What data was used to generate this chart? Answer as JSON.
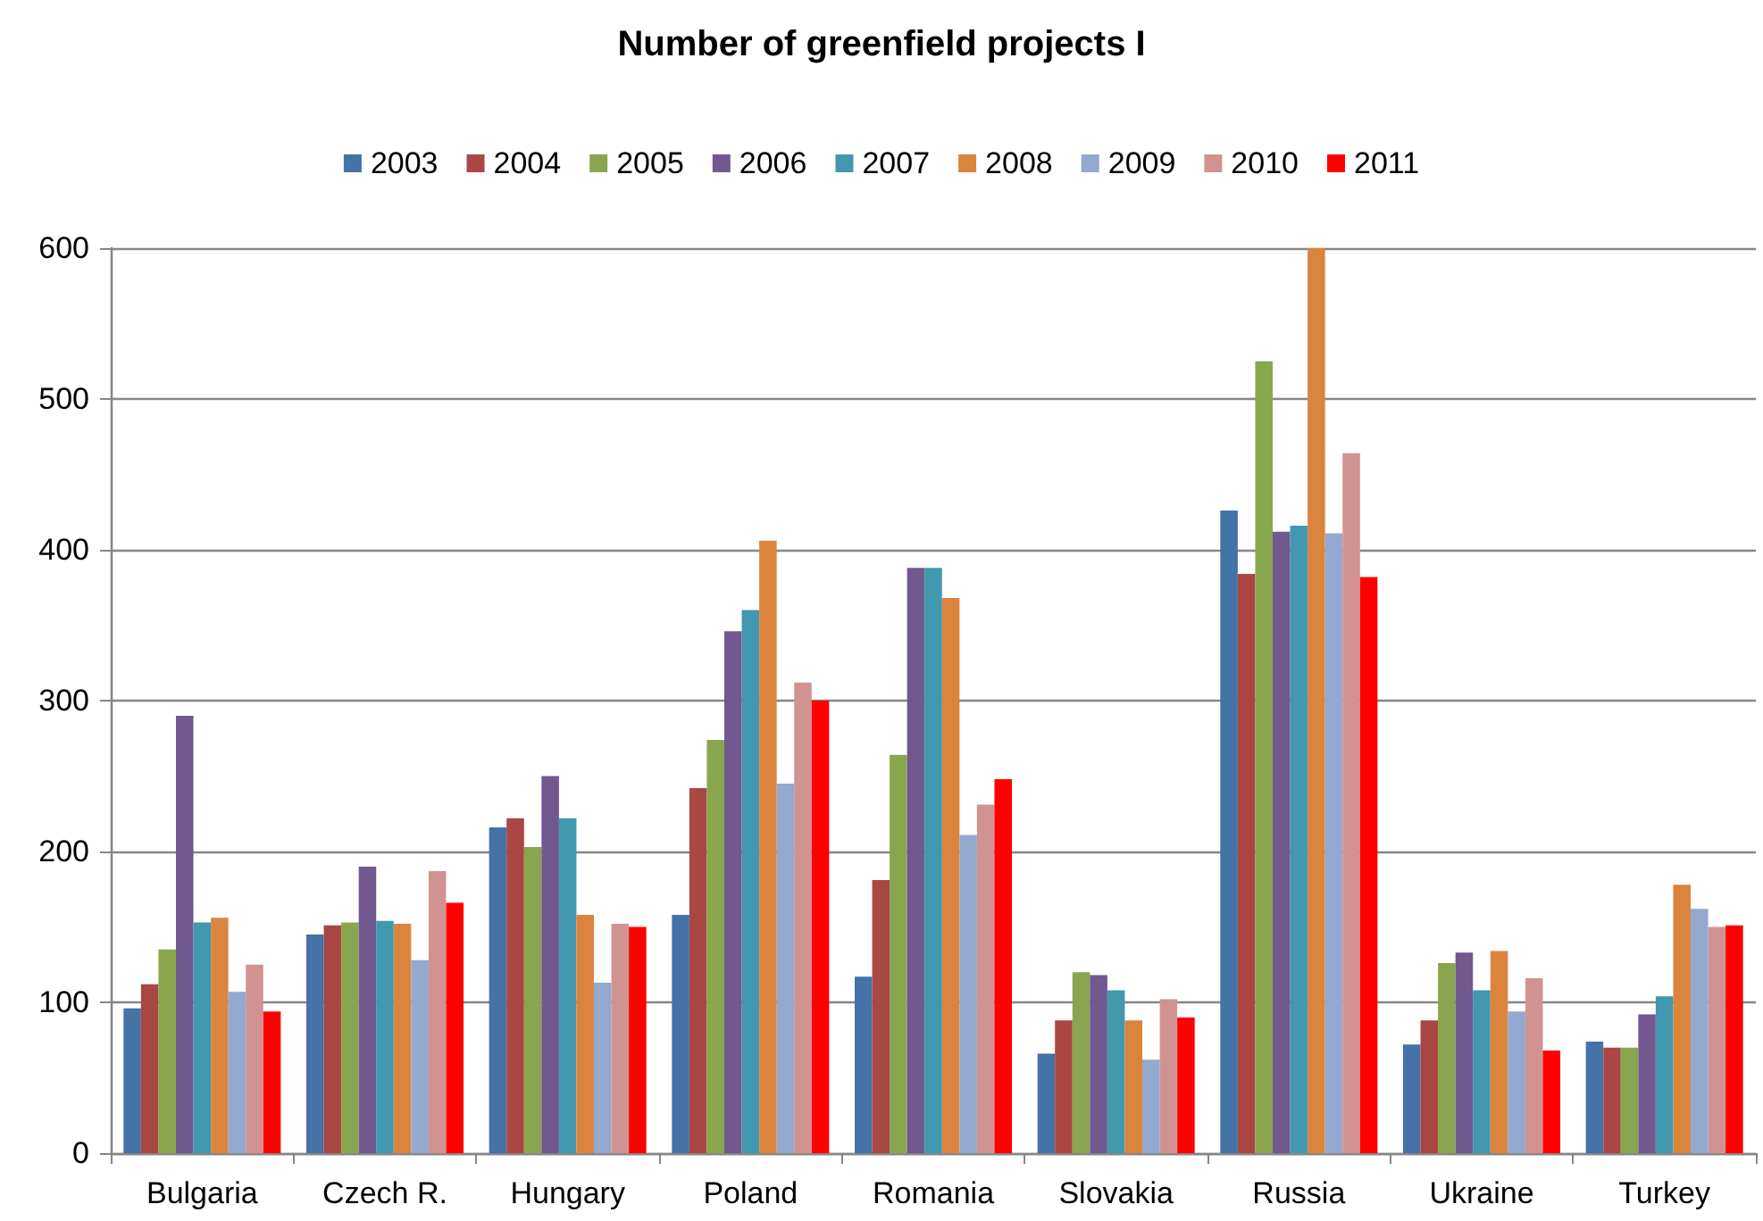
{
  "chart_data": {
    "type": "bar",
    "title": "Number of greenfield projects I",
    "categories": [
      "Bulgaria",
      "Czech R.",
      "Hungary",
      "Poland",
      "Romania",
      "Slovakia",
      "Russia",
      "Ukraine",
      "Turkey"
    ],
    "series": [
      {
        "name": "2003",
        "color": "#4572a7",
        "values": [
          96,
          145,
          216,
          158,
          117,
          66,
          426,
          72,
          74
        ]
      },
      {
        "name": "2004",
        "color": "#aa4643",
        "values": [
          112,
          151,
          222,
          242,
          181,
          88,
          384,
          88,
          70
        ]
      },
      {
        "name": "2005",
        "color": "#89a54e",
        "values": [
          135,
          153,
          203,
          274,
          264,
          120,
          525,
          126,
          70
        ]
      },
      {
        "name": "2006",
        "color": "#71588f",
        "values": [
          290,
          190,
          250,
          346,
          388,
          118,
          412,
          133,
          92
        ]
      },
      {
        "name": "2007",
        "color": "#4198af",
        "values": [
          153,
          154,
          222,
          360,
          388,
          108,
          416,
          108,
          104
        ]
      },
      {
        "name": "2008",
        "color": "#db843d",
        "values": [
          156,
          152,
          158,
          406,
          368,
          88,
          600,
          134,
          178
        ]
      },
      {
        "name": "2009",
        "color": "#93a9cf",
        "values": [
          107,
          128,
          113,
          245,
          211,
          62,
          411,
          94,
          162
        ]
      },
      {
        "name": "2010",
        "color": "#d19392",
        "values": [
          125,
          187,
          152,
          312,
          231,
          102,
          464,
          116,
          150
        ]
      },
      {
        "name": "2011",
        "color": "#ff0000",
        "values": [
          94,
          166,
          150,
          300,
          248,
          90,
          382,
          68,
          151
        ]
      }
    ],
    "ylim": [
      0,
      600
    ],
    "yticks": [
      0,
      100,
      200,
      300,
      400,
      500,
      600
    ],
    "grid": "y",
    "legend": "top"
  }
}
